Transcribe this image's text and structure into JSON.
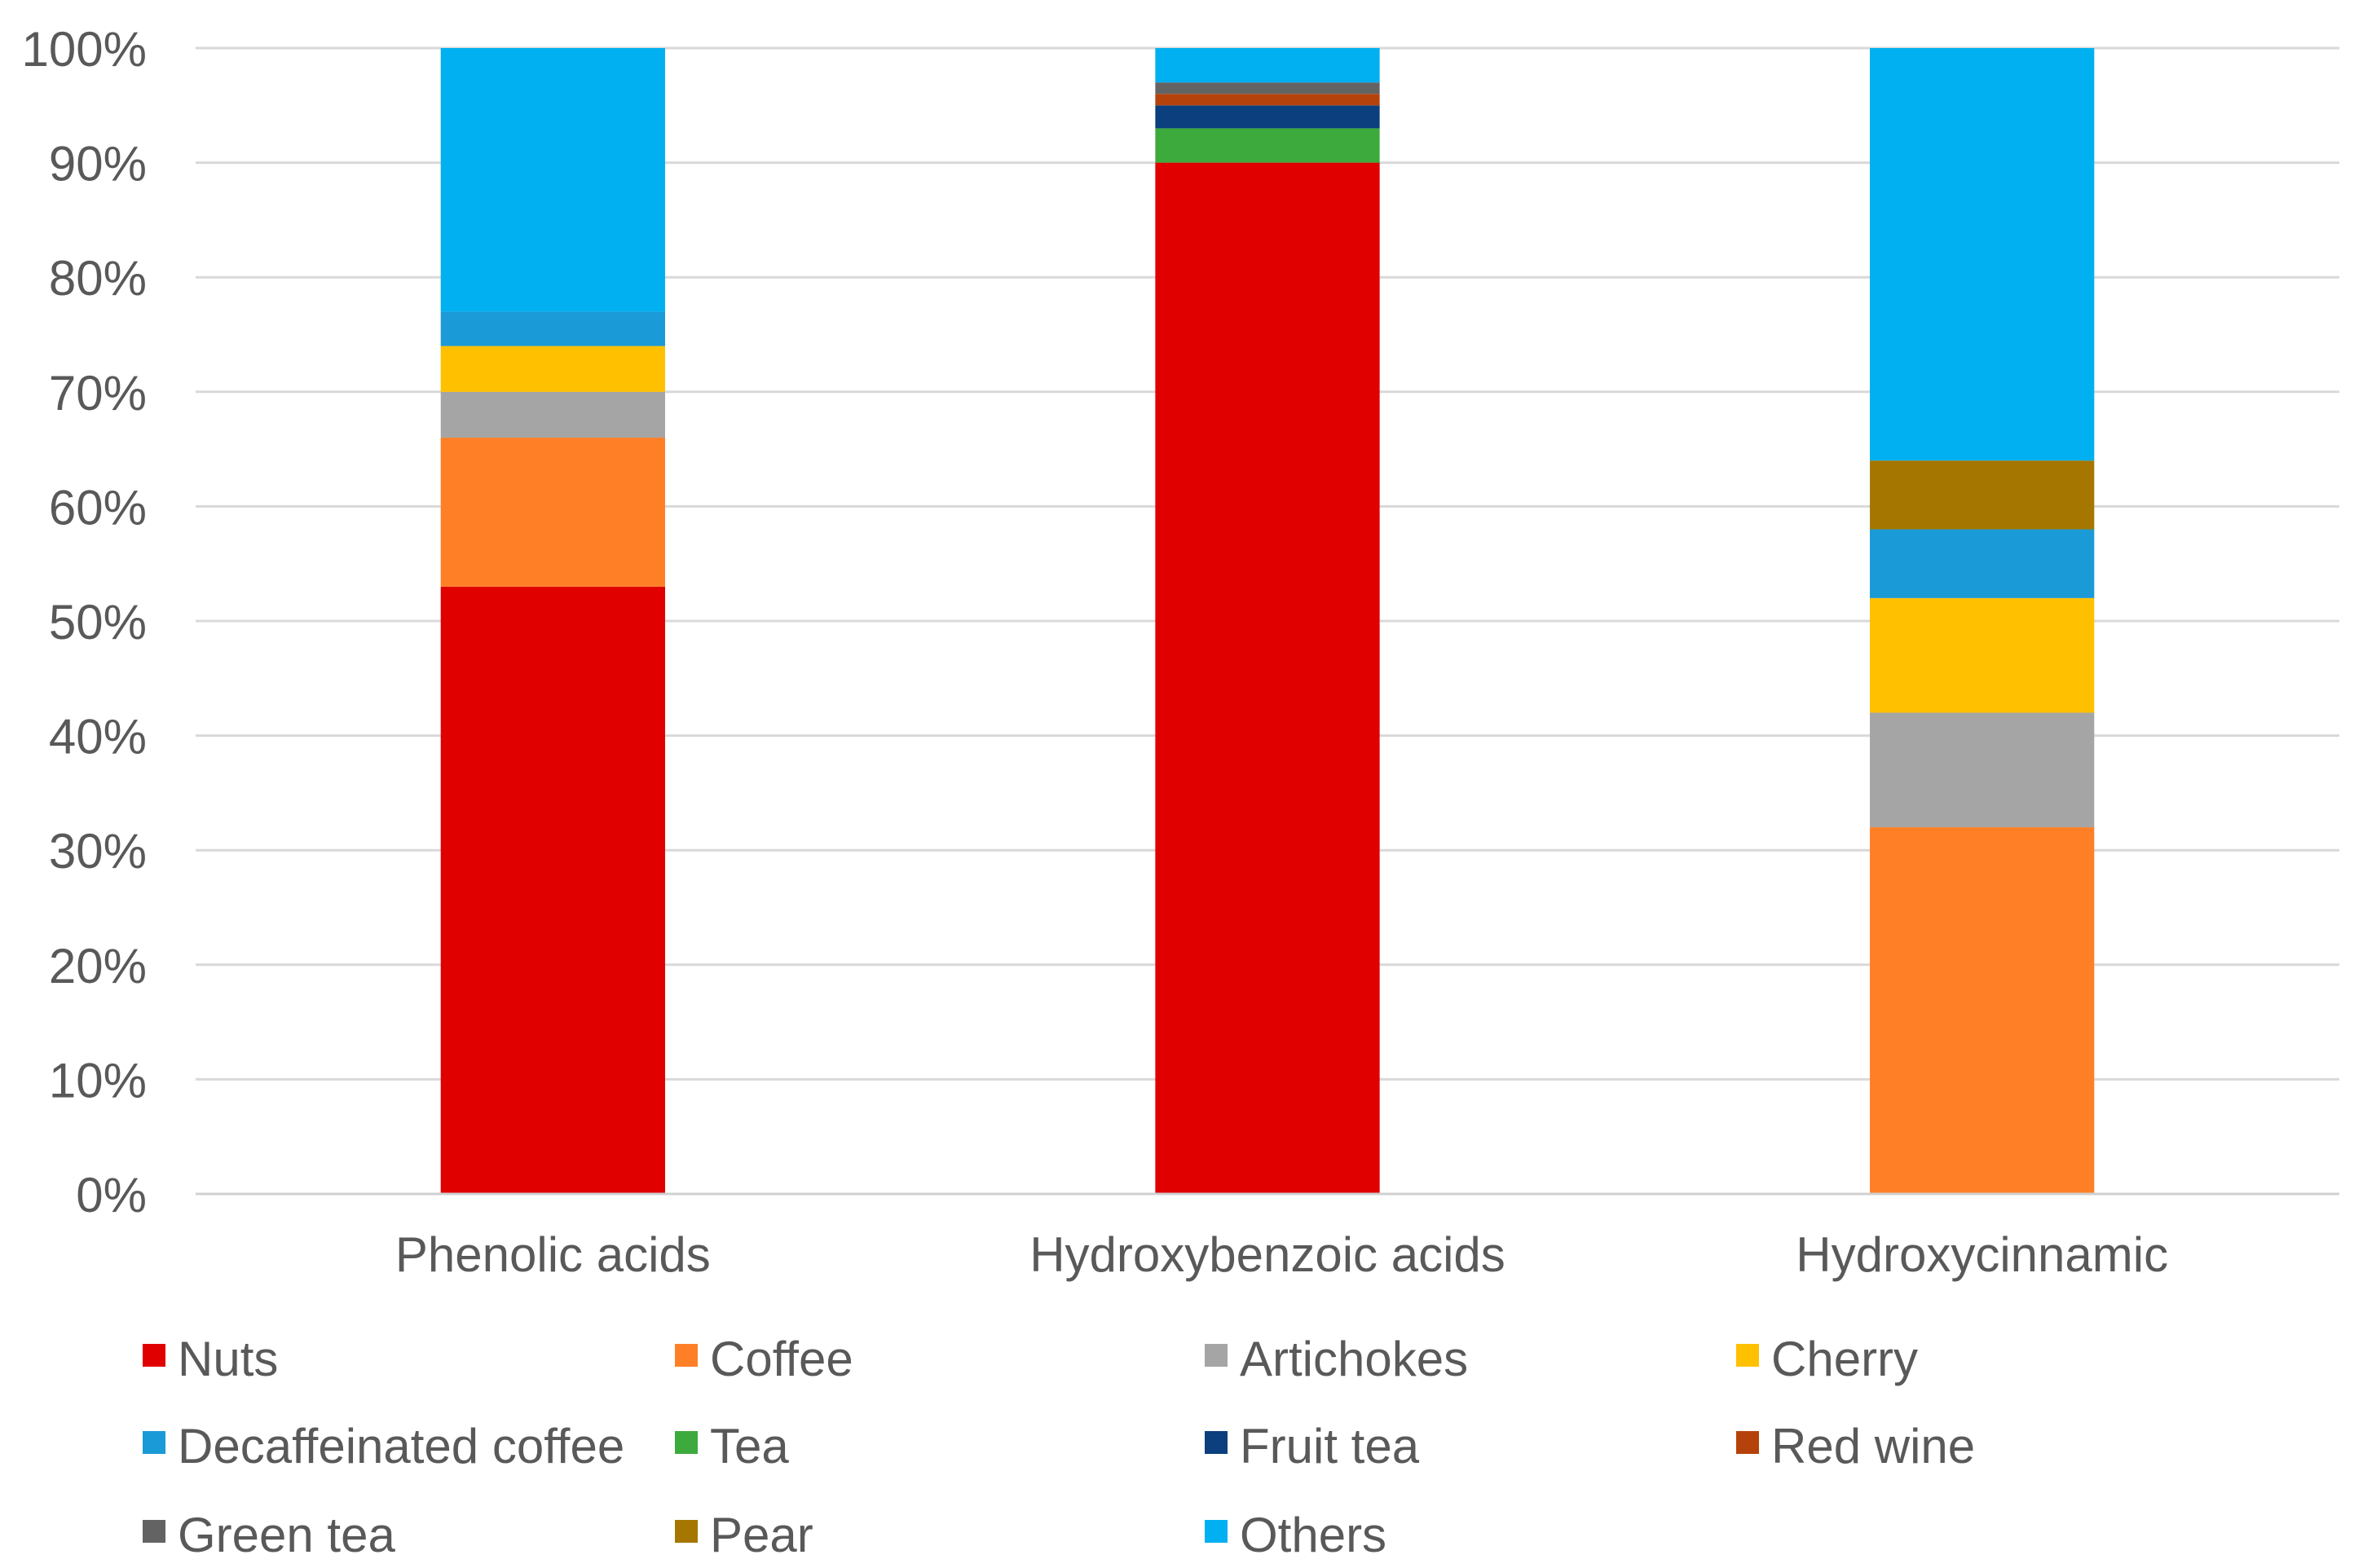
{
  "chart_data": {
    "type": "stacked-bar-100",
    "title": "",
    "xlabel": "",
    "ylabel": "",
    "ylim": [
      0,
      100
    ],
    "ytick_labels": [
      "0%",
      "10%",
      "20%",
      "30%",
      "40%",
      "50%",
      "60%",
      "70%",
      "80%",
      "90%",
      "100%"
    ],
    "grid": true,
    "legend_position": "bottom",
    "categories": [
      "Phenolic acids",
      "Hydroxybenzoic acids",
      "Hydroxycinnamic"
    ],
    "series": [
      {
        "name": "Nuts",
        "color": "#E00000",
        "values": [
          53,
          90,
          0
        ]
      },
      {
        "name": "Coffee",
        "color": "#FF7F27",
        "values": [
          13,
          0,
          32
        ]
      },
      {
        "name": "Artichokes",
        "color": "#A5A5A5",
        "values": [
          4,
          0,
          10
        ]
      },
      {
        "name": "Cherry",
        "color": "#FFC000",
        "values": [
          4,
          0,
          10
        ]
      },
      {
        "name": "Decaffeinated coffee",
        "color": "#1A9AD6",
        "values": [
          3,
          0,
          6
        ]
      },
      {
        "name": "Tea",
        "color": "#3DAA3D",
        "values": [
          0,
          3,
          0
        ]
      },
      {
        "name": "Fruit tea",
        "color": "#0B3F7E",
        "values": [
          0,
          2,
          0
        ]
      },
      {
        "name": "Red wine",
        "color": "#B5420B",
        "values": [
          0,
          1,
          0
        ]
      },
      {
        "name": "Green tea",
        "color": "#636363",
        "values": [
          0,
          1,
          0
        ]
      },
      {
        "name": "Pear",
        "color": "#A57600",
        "values": [
          0,
          0,
          6
        ]
      },
      {
        "name": "Others",
        "color": "#00B0F0",
        "values": [
          23,
          3,
          36
        ]
      }
    ]
  }
}
